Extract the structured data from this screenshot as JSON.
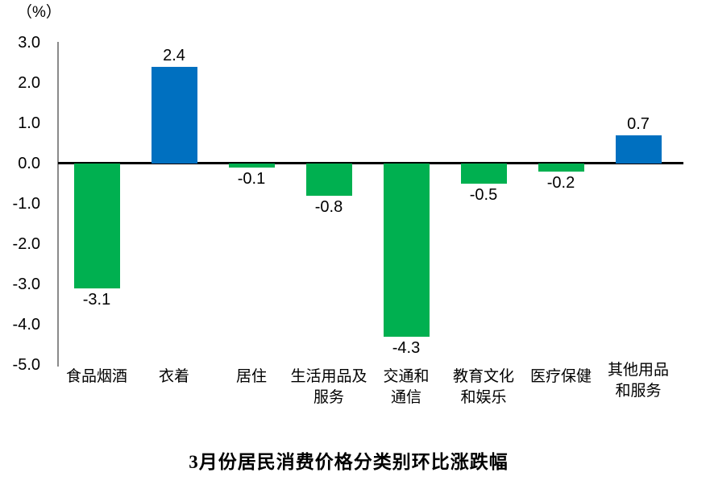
{
  "chart_data": {
    "type": "bar",
    "title": "3月份居民消费价格分类别环比涨跌幅",
    "unit_label": "（%）",
    "categories": [
      "食品烟酒",
      "衣着",
      "居住",
      "生活用品及\n服务",
      "交通和\n通信",
      "教育文化\n和娱乐",
      "医疗保健",
      "其他用品\n和服务"
    ],
    "values": [
      -3.1,
      2.4,
      -0.1,
      -0.8,
      -4.3,
      -0.5,
      -0.2,
      0.7
    ],
    "value_labels": [
      "-3.1",
      "2.4",
      "-0.1",
      "-0.8",
      "-4.3",
      "-0.5",
      "-0.2",
      "0.7"
    ],
    "xlabel": "",
    "ylabel": "（%）",
    "ylim": [
      -5.0,
      3.0
    ],
    "yticks": [
      3.0,
      2.0,
      1.0,
      0.0,
      -1.0,
      -2.0,
      -3.0,
      -4.0,
      -5.0
    ],
    "ytick_labels": [
      "3.0",
      "2.0",
      "1.0",
      "0.0",
      "-1.0",
      "-2.0",
      "-3.0",
      "-4.0",
      "-5.0"
    ],
    "positive_color": "#0070C0",
    "negative_color": "#00B050",
    "axis_line_color": "#8A8A8A",
    "zero_line_color": "#000000",
    "grid": false,
    "legend_position": "none"
  }
}
